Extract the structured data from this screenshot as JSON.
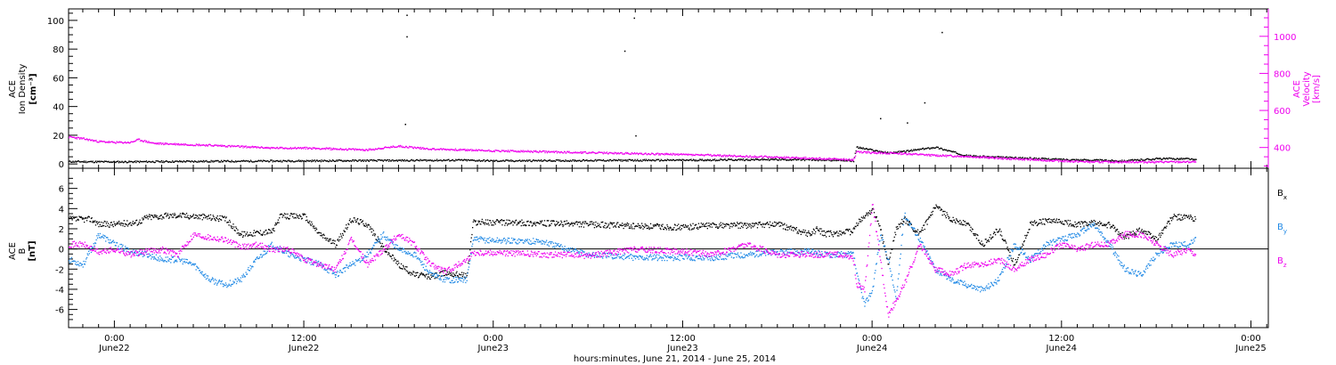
{
  "chart_data": [
    {
      "type": "scatter",
      "panel": "top",
      "xlabel": "hours:minutes, June 21, 2014 - June 25, 2014",
      "x_ticks": [
        {
          "time": "0:00",
          "date": "June22",
          "hours": 24
        },
        {
          "time": "12:00",
          "date": "June22",
          "hours": 36
        },
        {
          "time": "0:00",
          "date": "June23",
          "hours": 48
        },
        {
          "time": "12:00",
          "date": "June23",
          "hours": 60
        },
        {
          "time": "0:00",
          "date": "June24",
          "hours": 72
        },
        {
          "time": "12:00",
          "date": "June24",
          "hours": 84
        },
        {
          "time": "0:00",
          "date": "June25",
          "hours": 96
        }
      ],
      "xlim_hours": [
        21.1,
        97.1
      ],
      "left_axis": {
        "label": [
          "ACE",
          "Ion Density",
          "[cm⁻³]"
        ],
        "ylim": [
          -3,
          108
        ],
        "ticks": [
          0,
          20,
          40,
          60,
          80,
          100
        ]
      },
      "right_axis": {
        "label": [
          "ACE",
          "Velocity",
          "[km/s]"
        ],
        "ylim": [
          288,
          1148
        ],
        "ticks": [
          400,
          600,
          800,
          1000
        ]
      },
      "series": [
        {
          "name": "Ion Density",
          "axis": "left",
          "color": "#000000",
          "x": [
            21.1,
            24,
            30,
            36,
            42,
            46,
            48,
            54,
            60,
            66,
            70,
            70.8,
            71,
            72,
            73,
            74,
            76,
            78,
            80,
            84,
            86,
            88,
            90,
            92,
            92.5
          ],
          "y": [
            2,
            1.8,
            2.2,
            2.5,
            2.8,
            3,
            2.5,
            2.8,
            3,
            3.5,
            3,
            2.5,
            12,
            10,
            8,
            9,
            12,
            6,
            5,
            3.5,
            3,
            2.5,
            4,
            4,
            3
          ]
        },
        {
          "name": "Velocity",
          "axis": "right",
          "color": "#ee00ee",
          "x": [
            21.1,
            22,
            23,
            24,
            25,
            25.5,
            26.5,
            30,
            34,
            36,
            38,
            40,
            42,
            44,
            48,
            54,
            60,
            66,
            70,
            70.8,
            71,
            72,
            74,
            76,
            78,
            80,
            84,
            86,
            88,
            90,
            92,
            92.5
          ],
          "y": [
            460,
            450,
            435,
            430,
            430,
            445,
            425,
            415,
            400,
            400,
            395,
            390,
            410,
            395,
            385,
            375,
            365,
            350,
            340,
            335,
            380,
            375,
            370,
            360,
            355,
            345,
            330,
            325,
            325,
            325,
            325,
            325
          ]
        }
      ],
      "spikes": [
        {
          "x": 42.5,
          "y": 104
        },
        {
          "x": 42.5,
          "y": 89
        },
        {
          "x": 42.4,
          "y": 28
        },
        {
          "x": 56.3,
          "y": 79
        },
        {
          "x": 56.9,
          "y": 102
        },
        {
          "x": 57.0,
          "y": 20
        },
        {
          "x": 72.5,
          "y": 32
        },
        {
          "x": 74.2,
          "y": 29
        },
        {
          "x": 75.3,
          "y": 43
        },
        {
          "x": 76.4,
          "y": 92
        }
      ]
    },
    {
      "type": "scatter",
      "panel": "bottom",
      "left_axis": {
        "label": [
          "ACE",
          "B",
          "[nT]"
        ],
        "ylim": [
          -7.8,
          8
        ],
        "ticks": [
          -6,
          -4,
          -2,
          0,
          2,
          4,
          6
        ]
      },
      "legend_position": "right",
      "series": [
        {
          "name": "Bx",
          "legend": {
            "main": "B",
            "sub": "x"
          },
          "color": "#000000",
          "x": [
            21.1,
            22.5,
            23,
            24,
            25.5,
            26,
            27,
            28,
            30,
            31,
            32,
            34,
            34.5,
            36,
            37,
            38,
            39,
            40,
            41,
            42,
            43,
            44,
            45,
            46.3,
            46.7,
            48,
            51,
            54,
            57,
            60,
            62,
            64,
            66,
            68,
            68.5,
            69,
            70.8,
            71,
            72,
            72.5,
            73,
            73.5,
            74,
            75,
            76,
            77,
            78,
            79,
            80,
            81,
            82,
            83,
            84,
            85,
            86,
            87,
            88,
            89,
            90,
            91,
            92,
            92.5
          ],
          "y": [
            3,
            3,
            2.5,
            2.5,
            2.7,
            3.2,
            3.3,
            3.4,
            3.2,
            3,
            1.5,
            1.8,
            3.3,
            3.3,
            1.5,
            0.5,
            3,
            2.5,
            0.2,
            -1.5,
            -2.5,
            -2.7,
            -2.3,
            -2.6,
            2.7,
            2.7,
            2.6,
            2.5,
            2.3,
            2.2,
            2.4,
            2.4,
            2.5,
            1.5,
            2,
            1.5,
            1.8,
            2.5,
            4,
            2,
            -1.5,
            2,
            3,
            1.5,
            4.2,
            3,
            2.5,
            0.5,
            2,
            -1.5,
            2.5,
            2.8,
            2.7,
            2.5,
            2.6,
            2.4,
            1.2,
            2,
            1,
            3.2,
            3.2,
            3
          ]
        },
        {
          "name": "By",
          "legend": {
            "main": "B",
            "sub": "y"
          },
          "color": "#1e88e5",
          "x": [
            21.1,
            22,
            23,
            24,
            25,
            26,
            27,
            28,
            29,
            30,
            31,
            32,
            33,
            34,
            35,
            36,
            37,
            38,
            39,
            40,
            41,
            42,
            43,
            44,
            45,
            46.3,
            46.7,
            48,
            51,
            54,
            57,
            60,
            62,
            64,
            66,
            68,
            69,
            70,
            70.8,
            71,
            71.5,
            72,
            72.5,
            73,
            73.5,
            74,
            75,
            76,
            77,
            78,
            79,
            80,
            81,
            82,
            83,
            84,
            85,
            86,
            87,
            88,
            89,
            90,
            91,
            92,
            92.5
          ],
          "y": [
            -1,
            -1.5,
            1.5,
            0.5,
            -0.2,
            -0.5,
            -1,
            -1,
            -1.5,
            -3,
            -3.5,
            -3,
            -1,
            0.5,
            -0.5,
            -1,
            -1.5,
            -2.5,
            -1.5,
            -0.5,
            1.5,
            0,
            -0.5,
            -2.5,
            -3,
            -3,
            1,
            0.9,
            0.8,
            -0.5,
            -0.8,
            -0.8,
            -0.8,
            -0.5,
            -0.3,
            -0.2,
            -0.5,
            -0.5,
            -0.5,
            -2.5,
            -5.5,
            -4,
            1.5,
            -1,
            -5,
            3.5,
            1,
            -2,
            -3,
            -3.5,
            -4,
            -3,
            0.5,
            -1,
            0.5,
            1,
            1.5,
            2.5,
            0.5,
            -2,
            -2.5,
            -0.5,
            0.5,
            0.5,
            1
          ]
        },
        {
          "name": "Bz",
          "legend": {
            "main": "B",
            "sub": "z"
          },
          "color": "#ee00ee",
          "x": [
            21.1,
            22,
            23,
            24,
            25,
            26,
            27,
            28,
            29,
            30,
            31,
            32,
            33,
            34,
            35,
            36,
            37,
            38,
            39,
            40,
            41,
            42,
            43,
            44,
            45,
            46.3,
            46.7,
            48,
            51,
            54,
            57,
            60,
            62,
            64,
            66,
            68,
            70,
            70.8,
            71,
            71.5,
            72,
            72.5,
            73,
            74,
            75,
            76,
            77,
            78,
            79,
            80,
            81,
            82,
            83,
            84,
            85,
            86,
            87,
            88,
            89,
            90,
            91,
            92,
            92.5
          ],
          "y": [
            0.5,
            0.5,
            -0.3,
            0,
            -0.5,
            -0.2,
            0,
            -0.5,
            1.5,
            1.2,
            1,
            0.2,
            0.5,
            0,
            0,
            -1,
            -1.5,
            -2,
            1,
            -1.5,
            0,
            1.5,
            0.5,
            -1.5,
            -2.2,
            -1,
            -0.3,
            -0.3,
            -0.5,
            -0.6,
            0,
            -0.2,
            -0.5,
            0.5,
            -0.5,
            -0.5,
            -0.5,
            -1,
            -3.5,
            -4,
            4.5,
            -1,
            -6.5,
            -3.5,
            0.5,
            -2,
            -2.5,
            -1.5,
            -1.5,
            -1,
            -2,
            -1,
            -0.5,
            0.5,
            0,
            0.5,
            0.5,
            1.5,
            1.5,
            0.5,
            -0.5,
            0,
            -0.5
          ]
        }
      ]
    }
  ]
}
